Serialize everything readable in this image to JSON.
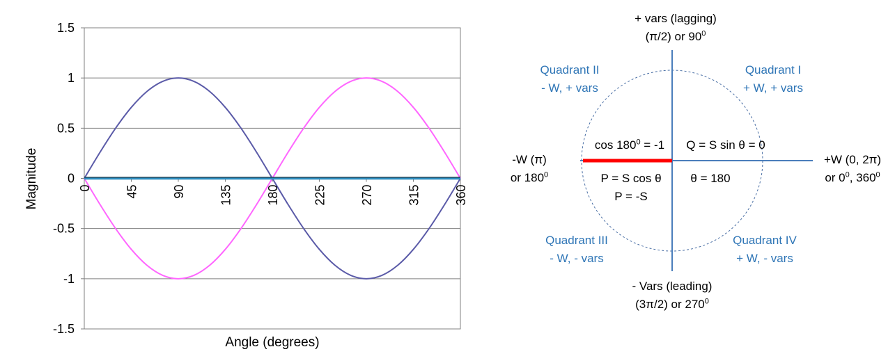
{
  "chart_data": {
    "type": "line",
    "xlabel": "Angle (degrees)",
    "ylabel": "Magnitude",
    "xlim": [
      0,
      360
    ],
    "ylim": [
      -1.5,
      1.5
    ],
    "x_ticks": [
      "0",
      "45",
      "90",
      "135",
      "180",
      "225",
      "270",
      "315",
      "360"
    ],
    "y_ticks": [
      "1.5",
      "1",
      "0.5",
      "0",
      "-0.5",
      "-1",
      "-1.5"
    ],
    "grid": "horizontal",
    "x": [
      0,
      15,
      30,
      45,
      60,
      75,
      90,
      105,
      120,
      135,
      150,
      165,
      180,
      195,
      210,
      225,
      240,
      255,
      270,
      285,
      300,
      315,
      330,
      345,
      360
    ],
    "series": [
      {
        "color": "#5b5ba8",
        "values": [
          0,
          0.259,
          0.5,
          0.707,
          0.866,
          0.966,
          1,
          0.966,
          0.866,
          0.707,
          0.5,
          0.259,
          0,
          -0.259,
          -0.5,
          -0.707,
          -0.866,
          -0.966,
          -1,
          -0.966,
          -0.866,
          -0.707,
          -0.5,
          -0.259,
          0
        ]
      },
      {
        "color": "#ff66ff",
        "values": [
          0,
          -0.259,
          -0.5,
          -0.707,
          -0.866,
          -0.966,
          -1,
          -0.966,
          -0.866,
          -0.707,
          -0.5,
          -0.259,
          0,
          0.259,
          0.5,
          0.707,
          0.866,
          0.966,
          1,
          0.966,
          0.866,
          0.707,
          0.5,
          0.259,
          0
        ]
      },
      {
        "color": "#2b8cbe",
        "values": [
          0,
          0,
          0,
          0,
          0,
          0,
          0,
          0,
          0,
          0,
          0,
          0,
          0,
          0,
          0,
          0,
          0,
          0,
          0,
          0,
          0,
          0,
          0,
          0,
          0
        ]
      }
    ]
  },
  "diagram": {
    "top_label_1": "+ vars (lagging)",
    "top_label_2": "(π/2) or 90",
    "top_label_2_sup": "0",
    "q2_title": "Quadrant II",
    "q2_signs": "- W, + vars",
    "q1_title": "Quadrant I",
    "q1_signs": "+ W, + vars",
    "cos_label": "cos 180",
    "cos_label_sup": "0",
    "cos_label_tail": " = -1",
    "q_label": "Q = S sin θ = 0",
    "left_label_1": "-W (π)",
    "left_label_2": "or 180",
    "left_label_2_sup": "0",
    "right_label_1": "+W (0, 2π)",
    "right_label_2a": "or 0",
    "right_label_2a_sup": "0",
    "right_label_2b": ", 360",
    "right_label_2b_sup": "0",
    "p_label": "P = S cos θ",
    "theta_label": "θ = 180",
    "p_value": "P = -S",
    "q3_title": "Quadrant III",
    "q3_signs": "- W, - vars",
    "q4_title": "Quadrant IV",
    "q4_signs": "+ W, - vars",
    "bottom_label_1": "- Vars (leading)",
    "bottom_label_2": "(3π/2) or 270",
    "bottom_label_2_sup": "0",
    "axis_color": "#4a7ebb",
    "vector_color": "#ff0000",
    "circle_color": "#4a6fa5",
    "quadrant_text_color": "#2e75b6"
  }
}
